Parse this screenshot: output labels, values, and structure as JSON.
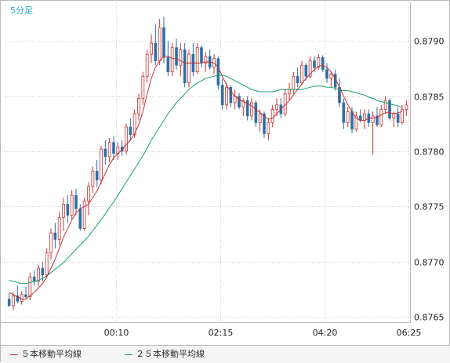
{
  "interval_label": "5分足",
  "colors": {
    "up": "#c83232",
    "down": "#2e6ea4",
    "ma5": "#c83232",
    "ma25": "#18a06a",
    "grid": "#d0d0d0",
    "axis_text": "#222222",
    "interval_text": "#21a9d6"
  },
  "chart_data": {
    "type": "candlestick",
    "title": "",
    "xlabel": "",
    "ylabel": "",
    "ylim": [
      0.87645,
      0.87935
    ],
    "y_ticks": [
      "0.8765",
      "0.8770",
      "0.8775",
      "0.8780",
      "0.8785",
      "0.8790"
    ],
    "x_ticks": [
      "00:10",
      "02:15",
      "04:20",
      "06:25"
    ],
    "grid": true,
    "legend": "bottom",
    "series": [
      {
        "name": "５本移動平均線",
        "color_key": "ma5"
      },
      {
        "name": "２５本移動平均線",
        "color_key": "ma25"
      }
    ],
    "candles": [
      [
        0.87666,
        0.87671,
        0.87659,
        0.8766
      ],
      [
        0.8766,
        0.87672,
        0.87656,
        0.87669
      ],
      [
        0.87669,
        0.87678,
        0.87662,
        0.87664
      ],
      [
        0.87664,
        0.87673,
        0.87661,
        0.8767
      ],
      [
        0.8767,
        0.87677,
        0.87666,
        0.87668
      ],
      [
        0.87668,
        0.8769,
        0.87665,
        0.87686
      ],
      [
        0.87686,
        0.87692,
        0.87678,
        0.87682
      ],
      [
        0.87682,
        0.87697,
        0.87678,
        0.87694
      ],
      [
        0.87694,
        0.877,
        0.87682,
        0.87688
      ],
      [
        0.87688,
        0.87712,
        0.87685,
        0.87708
      ],
      [
        0.87708,
        0.8773,
        0.87702,
        0.87726
      ],
      [
        0.87726,
        0.87735,
        0.87712,
        0.8772
      ],
      [
        0.8772,
        0.87745,
        0.87715,
        0.8774
      ],
      [
        0.8774,
        0.87758,
        0.87728,
        0.87752
      ],
      [
        0.87752,
        0.8776,
        0.87735,
        0.87742
      ],
      [
        0.87742,
        0.87765,
        0.87738,
        0.8776
      ],
      [
        0.8776,
        0.87766,
        0.87742,
        0.87748
      ],
      [
        0.87748,
        0.87752,
        0.87728,
        0.8773
      ],
      [
        0.8773,
        0.87758,
        0.87728,
        0.87755
      ],
      [
        0.87755,
        0.87772,
        0.87742,
        0.87768
      ],
      [
        0.87768,
        0.87786,
        0.87762,
        0.87782
      ],
      [
        0.87782,
        0.87792,
        0.87768,
        0.87774
      ],
      [
        0.87774,
        0.87805,
        0.8777,
        0.87802
      ],
      [
        0.87802,
        0.8781,
        0.87788,
        0.87795
      ],
      [
        0.87795,
        0.87812,
        0.8779,
        0.87808
      ],
      [
        0.87808,
        0.87814,
        0.87792,
        0.87798
      ],
      [
        0.87798,
        0.87808,
        0.87792,
        0.87804
      ],
      [
        0.87804,
        0.8781,
        0.87796,
        0.878
      ],
      [
        0.878,
        0.87825,
        0.87797,
        0.87822
      ],
      [
        0.87822,
        0.8783,
        0.8781,
        0.87815
      ],
      [
        0.87815,
        0.87838,
        0.87812,
        0.87834
      ],
      [
        0.87834,
        0.87852,
        0.87828,
        0.87848
      ],
      [
        0.87848,
        0.87872,
        0.87842,
        0.87868
      ],
      [
        0.87868,
        0.87892,
        0.87862,
        0.87888
      ],
      [
        0.87888,
        0.87906,
        0.8788,
        0.87898
      ],
      [
        0.87898,
        0.87915,
        0.87878,
        0.87882
      ],
      [
        0.87882,
        0.8792,
        0.87878,
        0.87912
      ],
      [
        0.87912,
        0.87922,
        0.8788,
        0.87885
      ],
      [
        0.87885,
        0.879,
        0.87868,
        0.87872
      ],
      [
        0.87872,
        0.87898,
        0.87868,
        0.87894
      ],
      [
        0.87894,
        0.87902,
        0.87874,
        0.87878
      ],
      [
        0.87878,
        0.87898,
        0.87868,
        0.87892
      ],
      [
        0.87892,
        0.87898,
        0.87858,
        0.87862
      ],
      [
        0.87862,
        0.87892,
        0.87858,
        0.87888
      ],
      [
        0.87888,
        0.87898,
        0.87868,
        0.87872
      ],
      [
        0.87872,
        0.87898,
        0.8787,
        0.87894
      ],
      [
        0.87894,
        0.87896,
        0.87876,
        0.8788
      ],
      [
        0.8788,
        0.8789,
        0.87872,
        0.87886
      ],
      [
        0.87886,
        0.87892,
        0.87874,
        0.87876
      ],
      [
        0.87876,
        0.87888,
        0.8787,
        0.87884
      ],
      [
        0.87884,
        0.87886,
        0.87856,
        0.8786
      ],
      [
        0.8786,
        0.87866,
        0.87838,
        0.87842
      ],
      [
        0.87842,
        0.87862,
        0.87838,
        0.87858
      ],
      [
        0.87858,
        0.8786,
        0.8784,
        0.87844
      ],
      [
        0.87844,
        0.87856,
        0.87838,
        0.8785
      ],
      [
        0.8785,
        0.87853,
        0.87838,
        0.8784
      ],
      [
        0.8784,
        0.87848,
        0.87832,
        0.87846
      ],
      [
        0.87846,
        0.8785,
        0.87828,
        0.87832
      ],
      [
        0.87832,
        0.87848,
        0.87828,
        0.87844
      ],
      [
        0.87844,
        0.87846,
        0.87822,
        0.87826
      ],
      [
        0.87826,
        0.87838,
        0.87818,
        0.87834
      ],
      [
        0.87834,
        0.87836,
        0.87812,
        0.87816
      ],
      [
        0.87816,
        0.8783,
        0.8781,
        0.87826
      ],
      [
        0.87826,
        0.87842,
        0.87822,
        0.87838
      ],
      [
        0.87838,
        0.87848,
        0.87832,
        0.87842
      ],
      [
        0.87842,
        0.87848,
        0.8783,
        0.87834
      ],
      [
        0.87834,
        0.87856,
        0.87832,
        0.87852
      ],
      [
        0.87852,
        0.87862,
        0.87846,
        0.87856
      ],
      [
        0.87856,
        0.87872,
        0.87852,
        0.87868
      ],
      [
        0.87868,
        0.87876,
        0.87858,
        0.87862
      ],
      [
        0.87862,
        0.87882,
        0.8786,
        0.87878
      ],
      [
        0.87878,
        0.8788,
        0.87864,
        0.87868
      ],
      [
        0.87868,
        0.87886,
        0.87866,
        0.87882
      ],
      [
        0.87882,
        0.87886,
        0.87872,
        0.87876
      ],
      [
        0.87876,
        0.87888,
        0.87874,
        0.87885
      ],
      [
        0.87885,
        0.87887,
        0.87872,
        0.87874
      ],
      [
        0.87874,
        0.8788,
        0.87862,
        0.87866
      ],
      [
        0.87866,
        0.87872,
        0.87858,
        0.8787
      ],
      [
        0.8787,
        0.87874,
        0.87855,
        0.87858
      ],
      [
        0.87858,
        0.87866,
        0.8784,
        0.87844
      ],
      [
        0.87844,
        0.87848,
        0.8782,
        0.87826
      ],
      [
        0.87826,
        0.8784,
        0.87822,
        0.87836
      ],
      [
        0.87836,
        0.8784,
        0.87816,
        0.8782
      ],
      [
        0.8782,
        0.87836,
        0.87818,
        0.87832
      ],
      [
        0.87832,
        0.87838,
        0.87826,
        0.87828
      ],
      [
        0.87828,
        0.87838,
        0.8782,
        0.87834
      ],
      [
        0.87834,
        0.87838,
        0.87822,
        0.87826
      ],
      [
        0.87826,
        0.87836,
        0.87797,
        0.87832
      ],
      [
        0.87832,
        0.8784,
        0.87822,
        0.87824
      ],
      [
        0.87824,
        0.87842,
        0.87822,
        0.87838
      ],
      [
        0.87838,
        0.8785,
        0.87834,
        0.87846
      ],
      [
        0.87846,
        0.87848,
        0.87828,
        0.8783
      ],
      [
        0.8783,
        0.87836,
        0.87822,
        0.87834
      ],
      [
        0.87834,
        0.8784,
        0.87822,
        0.87826
      ],
      [
        0.87826,
        0.87842,
        0.87824,
        0.87838
      ],
      [
        0.87838,
        0.87846,
        0.87832,
        0.87842
      ]
    ],
    "ma5": [
      0.87672,
      0.8767,
      0.87668,
      0.87666,
      0.87666,
      0.87669,
      0.87672,
      0.87676,
      0.8768,
      0.87686,
      0.87694,
      0.87702,
      0.87712,
      0.87722,
      0.8773,
      0.87738,
      0.87744,
      0.87748,
      0.8775,
      0.87752,
      0.87758,
      0.87764,
      0.87772,
      0.8778,
      0.87788,
      0.87794,
      0.87798,
      0.87801,
      0.87806,
      0.8781,
      0.87816,
      0.87824,
      0.87836,
      0.87852,
      0.87866,
      0.87876,
      0.87882,
      0.87886,
      0.87886,
      0.87884,
      0.87884,
      0.87882,
      0.8788,
      0.8788,
      0.8788,
      0.8788,
      0.8788,
      0.87881,
      0.87881,
      0.8788,
      0.87876,
      0.87868,
      0.8786,
      0.87854,
      0.8785,
      0.87847,
      0.87845,
      0.87843,
      0.87841,
      0.87838,
      0.87835,
      0.87832,
      0.87829,
      0.8783,
      0.87834,
      0.87838,
      0.87842,
      0.87846,
      0.87851,
      0.87856,
      0.87861,
      0.87866,
      0.8787,
      0.87874,
      0.87877,
      0.87878,
      0.87876,
      0.87872,
      0.87866,
      0.87858,
      0.8785,
      0.87842,
      0.87836,
      0.8783,
      0.87828,
      0.87828,
      0.8783,
      0.8783,
      0.87831,
      0.87833,
      0.87835,
      0.87835,
      0.87834,
      0.87835,
      0.87836
    ],
    "ma25": [
      0.87683,
      0.87682,
      0.87681,
      0.8768,
      0.8768,
      0.87681,
      0.87682,
      0.87683,
      0.87685,
      0.87687,
      0.8769,
      0.87693,
      0.87696,
      0.87699,
      0.87703,
      0.87707,
      0.87711,
      0.87715,
      0.87719,
      0.87723,
      0.87728,
      0.87733,
      0.87738,
      0.87743,
      0.87749,
      0.87754,
      0.8776,
      0.87766,
      0.87772,
      0.87778,
      0.87784,
      0.8779,
      0.87796,
      0.87803,
      0.8781,
      0.87816,
      0.87822,
      0.87828,
      0.87834,
      0.87839,
      0.87844,
      0.87848,
      0.87852,
      0.87856,
      0.87859,
      0.87862,
      0.87864,
      0.87866,
      0.87867,
      0.87868,
      0.87869,
      0.87869,
      0.87868,
      0.87866,
      0.87864,
      0.87862,
      0.8786,
      0.87858,
      0.87856,
      0.87855,
      0.87854,
      0.87854,
      0.87854,
      0.87854,
      0.87855,
      0.87856,
      0.87856,
      0.87856,
      0.87856,
      0.87856,
      0.87856,
      0.87857,
      0.87858,
      0.87859,
      0.87859,
      0.87859,
      0.87858,
      0.87858,
      0.87857,
      0.87856,
      0.87855,
      0.87855,
      0.87854,
      0.87853,
      0.87852,
      0.87851,
      0.87849,
      0.87848,
      0.87846,
      0.87845,
      0.87844,
      0.87843,
      0.87842,
      0.87841,
      0.8784
    ]
  }
}
